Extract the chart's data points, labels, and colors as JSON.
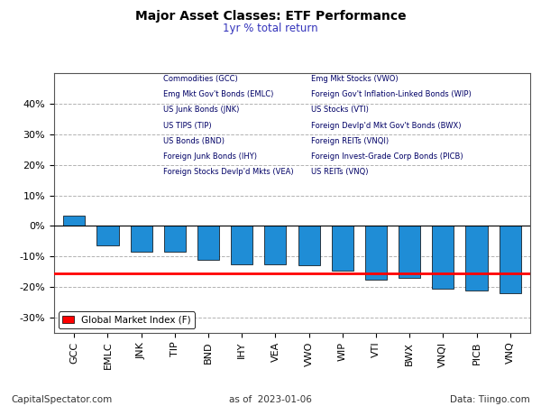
{
  "title": "Major Asset Classes: ETF Performance",
  "subtitle": "1yr % total return",
  "categories": [
    "GCC",
    "EMLC",
    "JNK",
    "TIP",
    "BND",
    "IHY",
    "VEA",
    "VWO",
    "WIP",
    "VTI",
    "BWX",
    "VNQI",
    "PICB",
    "VNQ"
  ],
  "values": [
    3.5,
    -6.5,
    -8.5,
    -8.5,
    -11.0,
    -12.5,
    -12.5,
    -13.0,
    -14.5,
    -17.5,
    -17.0,
    -20.5,
    -21.0,
    -22.0
  ],
  "global_market_index_line": -15.5,
  "bar_color": "#1f8dd6",
  "bar_edgecolor": "#000000",
  "line_color": "#ff0000",
  "ylim": [
    -35,
    50
  ],
  "yticks": [
    -30,
    -20,
    -10,
    0,
    10,
    20,
    30,
    40
  ],
  "ytick_labels": [
    "-30%",
    "-20%",
    "-10%",
    "0%",
    "10%",
    "20%",
    "30%",
    "40%"
  ],
  "footer_left": "CapitalSpectator.com",
  "footer_center": "as of  2023-01-06",
  "footer_right": "Data: Tiingo.com",
  "legend_labels_col1": [
    "Commodities (GCC)",
    "Emg Mkt Gov't Bonds (EMLC)",
    "US Junk Bonds (JNK)",
    "US TIPS (TIP)",
    "US Bonds (BND)",
    "Foreign Junk Bonds (IHY)",
    "Foreign Stocks Devlp'd Mkts (VEA)"
  ],
  "legend_labels_col2": [
    "Emg Mkt Stocks (VWO)",
    "Foreign Gov't Inflation-Linked Bonds (WIP)",
    "US Stocks (VTI)",
    "Foreign Devlp'd Mkt Gov't Bonds (BWX)",
    "Foreign REITs (VNQI)",
    "Foreign Invest-Grade Corp Bonds (PICB)",
    "US REITs (VNQ)"
  ]
}
